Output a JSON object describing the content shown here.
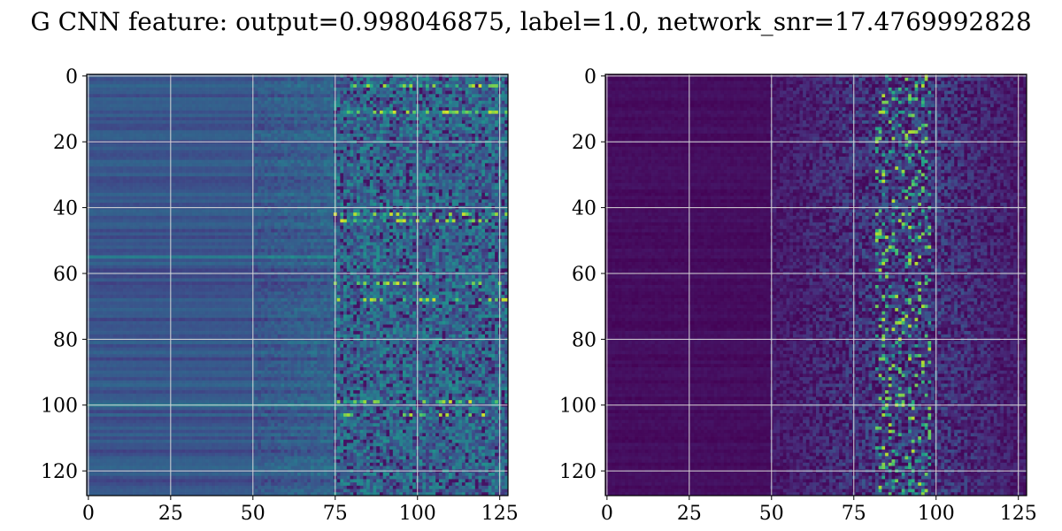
{
  "title": "G CNN feature: output=0.998046875, label=1.0, network_snr=17.4769992828",
  "chart_data": [
    {
      "type": "heatmap",
      "panel": "left",
      "title": "",
      "xlabel": "",
      "ylabel": "",
      "xlim": [
        0,
        127
      ],
      "ylim": [
        127,
        0
      ],
      "xticks": [
        0,
        25,
        50,
        75,
        100,
        125
      ],
      "yticks": [
        0,
        20,
        40,
        60,
        80,
        100,
        120
      ],
      "grid": true,
      "colormap": "viridis",
      "description_of_pattern": {
        "quiet_region_cols": [
          0,
          75
        ],
        "noisy_region_cols": [
          75,
          127
        ],
        "bright_rows": [
          3,
          11,
          42,
          44,
          63,
          68,
          99,
          103
        ]
      }
    },
    {
      "type": "heatmap",
      "panel": "right",
      "title": "",
      "xlabel": "",
      "ylabel": "",
      "xlim": [
        0,
        127
      ],
      "ylim": [
        127,
        0
      ],
      "xticks": [
        0,
        25,
        50,
        75,
        100,
        125
      ],
      "yticks": [
        0,
        20,
        40,
        60,
        80,
        100,
        120
      ],
      "grid": true,
      "colormap": "viridis",
      "description_of_pattern": {
        "quiet_region_cols": [
          0,
          50
        ],
        "noisy_region_cols": [
          50,
          127
        ],
        "bright_column_center": 90
      }
    }
  ],
  "colors": {
    "grid": "#d8d8d8",
    "axes": "#000000",
    "viridis_low": "#440154",
    "viridis_high": "#fde725"
  }
}
